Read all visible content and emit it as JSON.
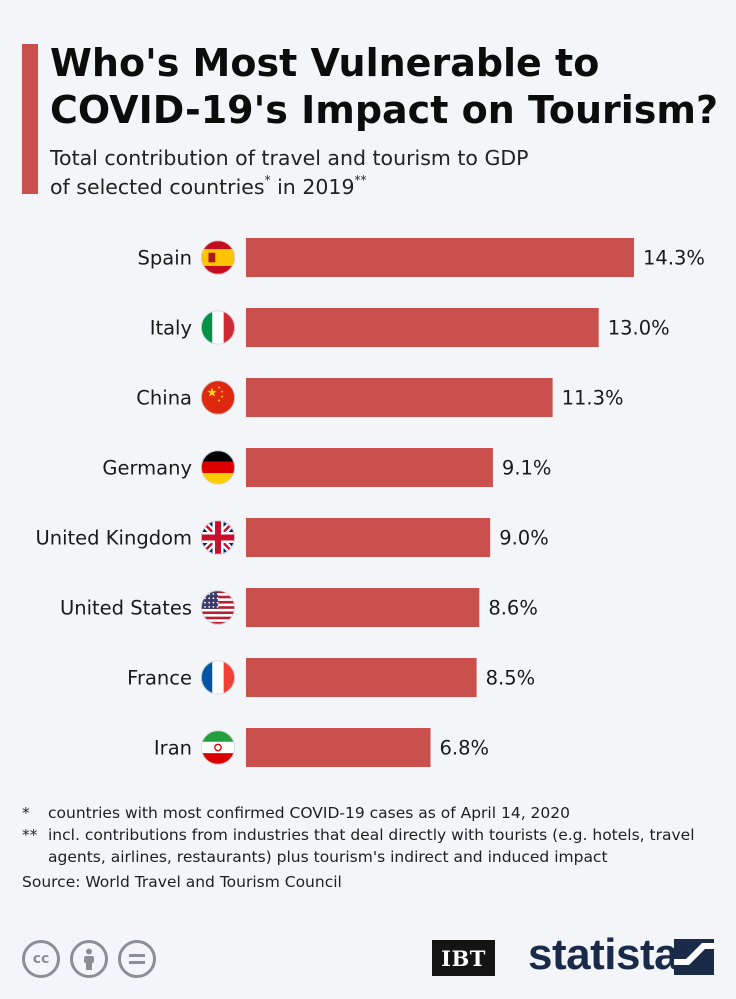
{
  "header": {
    "title_line1": "Who's Most Vulnerable to",
    "title_line2": "COVID-19's Impact on Tourism?",
    "subtitle_line1": "Total contribution of travel and tourism to GDP",
    "subtitle_line2_a": "of selected countries",
    "subtitle_sup1": "*",
    "subtitle_line2_b": " in 2019",
    "subtitle_sup2": "**"
  },
  "chart_data": {
    "type": "bar",
    "orientation": "horizontal",
    "categories": [
      "Spain",
      "Italy",
      "China",
      "Germany",
      "United Kingdom",
      "United States",
      "France",
      "Iran"
    ],
    "values": [
      14.3,
      13.0,
      11.3,
      9.1,
      9.0,
      8.6,
      8.5,
      6.8
    ],
    "value_labels": [
      "14.3%",
      "13.0%",
      "11.3%",
      "9.1%",
      "9.0%",
      "8.6%",
      "8.5%",
      "6.8%"
    ],
    "unit": "%",
    "bar_color": "#c9504d",
    "xlim": [
      0,
      14.3
    ],
    "grid": false,
    "legend": "none",
    "flags": [
      "spain-flag-icon",
      "italy-flag-icon",
      "china-flag-icon",
      "germany-flag-icon",
      "uk-flag-icon",
      "usa-flag-icon",
      "france-flag-icon",
      "iran-flag-icon"
    ]
  },
  "footnotes": {
    "note1_mark": "*",
    "note1_text": "countries with most confirmed COVID-19 cases as of April 14, 2020",
    "note2_mark": "**",
    "note2_text": "incl. contributions from industries that deal directly with tourists (e.g. hotels, travel agents, airlines, restaurants) plus tourism's indirect and induced impact",
    "source": "Source: World Travel and Tourism Council"
  },
  "footer": {
    "cc_icons": [
      "creative-commons-icon",
      "attribution-icon",
      "no-derivatives-icon"
    ],
    "cc_label": "cc",
    "ibt_logo": "IBT",
    "statista_logo": "statista"
  },
  "colors": {
    "accent": "#c9504d",
    "background": "#f3f5f8",
    "statista_navy": "#1a2b4a"
  }
}
